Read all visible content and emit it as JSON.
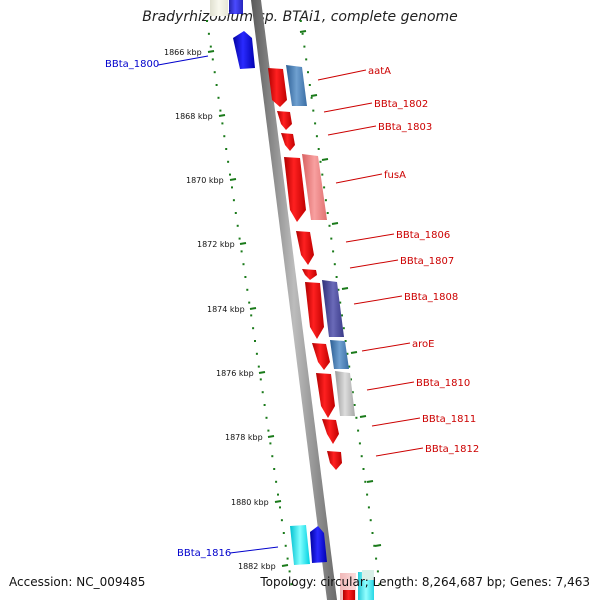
{
  "title": "Bradyrhizobium sp. BTAi1, complete genome",
  "footer": {
    "accession": "Accession: NC_009485",
    "stats": "Topology: circular; Length: 8,264,687 bp; Genes: 7,463"
  },
  "colors": {
    "backbone": "#8a8a8a",
    "dotted_track": "#1a7a1a",
    "label_red": "#cc0000",
    "label_blue": "#0000cc",
    "gene_red": "#ee0000",
    "gene_blue": "#0000ee",
    "gene_steelblue": "#4a7fb5",
    "gene_pink": "#ee8080",
    "gene_navy": "#4a4a9a",
    "gene_gray": "#b8b8b8",
    "gene_cyan": "#00e0ee"
  },
  "ticks": [
    {
      "label": "1866 kbp"
    },
    {
      "label": "1868 kbp"
    },
    {
      "label": "1870 kbp"
    },
    {
      "label": "1872 kbp"
    },
    {
      "label": "1874 kbp"
    },
    {
      "label": "1876 kbp"
    },
    {
      "label": "1878 kbp"
    },
    {
      "label": "1880 kbp"
    },
    {
      "label": "1882 kbp"
    }
  ],
  "genes_right": [
    {
      "name": "aatA",
      "color": "gene_red",
      "strand": "forward"
    },
    {
      "name": "BBta_1802",
      "color": "gene_red",
      "strand": "forward"
    },
    {
      "name": "BBta_1803",
      "color": "gene_red",
      "strand": "forward"
    },
    {
      "name": "fusA",
      "color": "gene_red",
      "strand": "forward"
    },
    {
      "name": "BBta_1806",
      "color": "gene_red",
      "strand": "forward"
    },
    {
      "name": "BBta_1807",
      "color": "gene_red",
      "strand": "forward"
    },
    {
      "name": "BBta_1808",
      "color": "gene_red",
      "strand": "forward"
    },
    {
      "name": "aroE",
      "color": "gene_red",
      "strand": "forward"
    },
    {
      "name": "BBta_1810",
      "color": "gene_red",
      "strand": "forward"
    },
    {
      "name": "BBta_1811",
      "color": "gene_red",
      "strand": "forward"
    },
    {
      "name": "BBta_1812",
      "color": "gene_red",
      "strand": "forward"
    }
  ],
  "genes_left": [
    {
      "name": "BBta_1800",
      "color": "gene_blue",
      "strand": "reverse"
    },
    {
      "name": "BBta_1816",
      "color": "gene_blue",
      "strand": "reverse"
    }
  ]
}
